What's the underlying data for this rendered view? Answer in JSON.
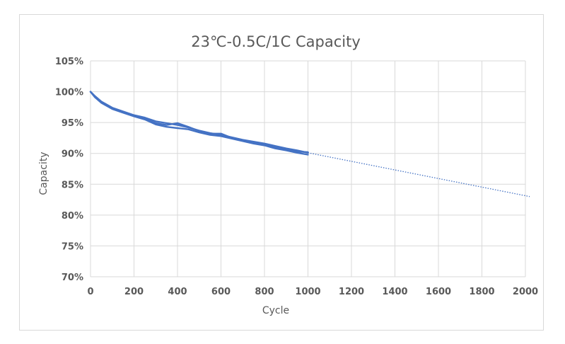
{
  "chart_data": {
    "type": "line",
    "title": "23℃-0.5C/1C Capacity",
    "xlabel": "Cycle",
    "ylabel": "Capacity",
    "xlim": [
      0,
      2000
    ],
    "ylim": [
      70,
      105
    ],
    "x_ticks": [
      "0",
      "200",
      "400",
      "600",
      "800",
      "1000",
      "1200",
      "1400",
      "1600",
      "1800",
      "2000"
    ],
    "y_ticks": [
      "70%",
      "75%",
      "80%",
      "85%",
      "90%",
      "95%",
      "100%",
      "105%"
    ],
    "grid": true,
    "legend": "none",
    "series_color": "#4472C4",
    "series": [
      {
        "style": "solid",
        "x": [
          0,
          20,
          50,
          100,
          150,
          200,
          250,
          300,
          350,
          400,
          450,
          500,
          550,
          600,
          650,
          700,
          750,
          800,
          850,
          900,
          950,
          1000
        ],
        "y": [
          100.0,
          99.3,
          98.4,
          97.4,
          96.8,
          96.2,
          95.8,
          95.2,
          94.9,
          94.6,
          94.2,
          93.7,
          93.3,
          93.0,
          92.6,
          92.2,
          91.9,
          91.6,
          91.2,
          90.8,
          90.5,
          90.1
        ]
      },
      {
        "style": "solid",
        "x": [
          0,
          20,
          50,
          100,
          150,
          200,
          250,
          300,
          350,
          400,
          450,
          500,
          550,
          600,
          650,
          700,
          750,
          800,
          850,
          900,
          950,
          1000
        ],
        "y": [
          100.0,
          99.1,
          98.2,
          97.2,
          96.6,
          96.0,
          95.5,
          94.7,
          94.3,
          94.1,
          93.9,
          93.4,
          93.0,
          92.8,
          92.4,
          92.0,
          91.6,
          91.3,
          90.8,
          90.5,
          90.1,
          89.8
        ]
      },
      {
        "style": "solid",
        "x": [
          0,
          20,
          50,
          100,
          150,
          200,
          250,
          300,
          350,
          400,
          450,
          500,
          550,
          600,
          650,
          700,
          750,
          800,
          850,
          900,
          950,
          1000
        ],
        "y": [
          100.0,
          99.2,
          98.3,
          97.3,
          96.7,
          96.1,
          95.6,
          94.9,
          94.6,
          94.9,
          94.3,
          93.6,
          93.2,
          93.2,
          92.5,
          92.1,
          91.8,
          91.5,
          91.0,
          90.7,
          90.3,
          90.2
        ]
      },
      {
        "style": "dotted",
        "x": [
          1000,
          2020
        ],
        "y": [
          90.1,
          83.0
        ]
      }
    ]
  }
}
